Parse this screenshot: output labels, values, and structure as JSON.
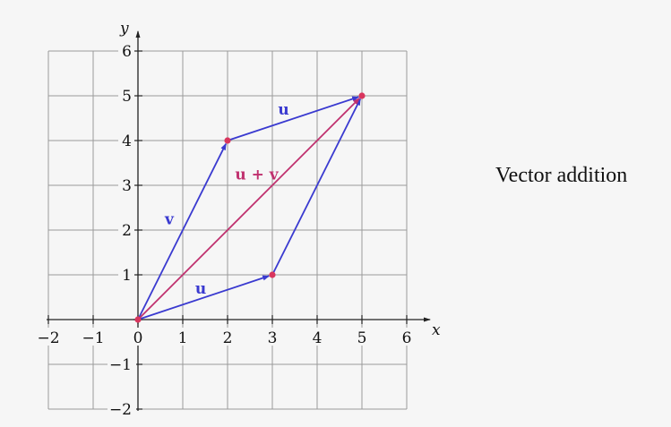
{
  "caption": "Vector addition",
  "colors": {
    "background": "#f6f6f6",
    "grid": "#9a9a9a",
    "axis": "#222222",
    "vector_blue": "#3a3ad0",
    "vector_magenta": "#c0306e",
    "point": "#d9365e"
  },
  "axes": {
    "x_label": "x",
    "y_label": "y",
    "x_range": [
      -2,
      6
    ],
    "y_range": [
      -2,
      6
    ],
    "x_ticks": [
      "−2",
      "−1",
      "0",
      "1",
      "2",
      "3",
      "4",
      "5",
      "6"
    ],
    "y_ticks": [
      "−2",
      "−1",
      "0",
      "1",
      "2",
      "3",
      "4",
      "5",
      "6"
    ]
  },
  "points": [
    {
      "name": "origin",
      "x": 0,
      "y": 0
    },
    {
      "name": "v-tip",
      "x": 2,
      "y": 4
    },
    {
      "name": "u-tip",
      "x": 3,
      "y": 1
    },
    {
      "name": "sum-tip",
      "x": 5,
      "y": 5
    }
  ],
  "vectors": [
    {
      "name": "vector-v",
      "from": [
        0,
        0
      ],
      "to": [
        2,
        4
      ],
      "label": "v",
      "color": "#3a3ad0",
      "label_at": [
        0.7,
        2.25
      ]
    },
    {
      "name": "vector-u-bottom",
      "from": [
        0,
        0
      ],
      "to": [
        3,
        1
      ],
      "label": "u",
      "color": "#3a3ad0",
      "label_at": [
        1.4,
        0.7
      ]
    },
    {
      "name": "vector-u-top",
      "from": [
        2,
        4
      ],
      "to": [
        5,
        5
      ],
      "label": "u",
      "color": "#3a3ad0",
      "label_at": [
        3.25,
        4.7
      ]
    },
    {
      "name": "vector-v-right",
      "from": [
        3,
        1
      ],
      "to": [
        5,
        5
      ],
      "label": "",
      "color": "#3a3ad0",
      "label_at": null
    },
    {
      "name": "vector-u-plus-v",
      "from": [
        0,
        0
      ],
      "to": [
        5,
        5
      ],
      "label": "u + v",
      "color": "#c0306e",
      "label_at": [
        2.65,
        3.25
      ]
    }
  ]
}
